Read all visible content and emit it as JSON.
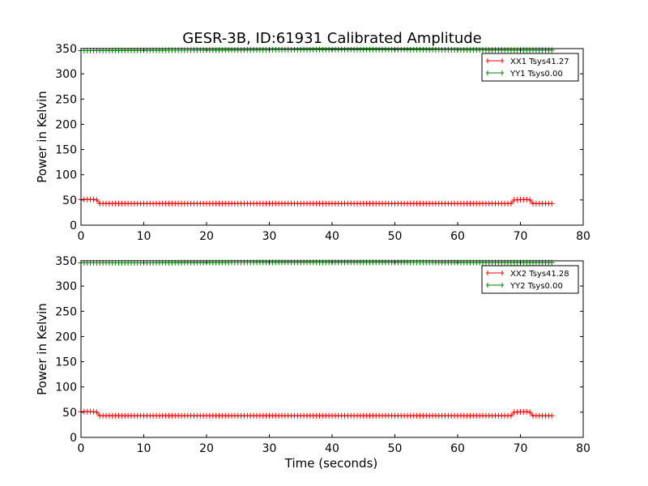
{
  "figure": {
    "title": "GESR-3B, ID:61931 Calibrated Amplitude"
  },
  "chart_data": [
    {
      "type": "line",
      "ylabel": "Power in Kelvin",
      "xlabel": "",
      "xlim": [
        0,
        80
      ],
      "ylim": [
        0,
        350
      ],
      "x_ticks": [
        0,
        10,
        20,
        30,
        40,
        50,
        60,
        70,
        80
      ],
      "y_ticks": [
        0,
        50,
        100,
        150,
        200,
        250,
        300,
        350
      ],
      "x_tick_labels": [
        "0",
        "10",
        "20",
        "30",
        "40",
        "50",
        "60",
        "70",
        "80"
      ],
      "y_tick_labels": [
        "0",
        "50",
        "100",
        "150",
        "200",
        "250",
        "300",
        "350"
      ],
      "legend_position": "top-right",
      "grid": false,
      "series": [
        {
          "name": "XX1 Tsys41.27",
          "color": "#ff0000",
          "marker": "plus",
          "points": [
            [
              0,
              51
            ],
            [
              2,
              51
            ],
            [
              2.5,
              50
            ],
            [
              3,
              43
            ],
            [
              68.5,
              43
            ],
            [
              69,
              50
            ],
            [
              71,
              51
            ],
            [
              71.5,
              50
            ],
            [
              72,
              43
            ],
            [
              75,
              43
            ]
          ]
        },
        {
          "name": "YY1 Tsys0.00",
          "color": "#008000",
          "marker": "plus",
          "points": [
            [
              0,
              346
            ],
            [
              10,
              346.5
            ],
            [
              20,
              347
            ],
            [
              30,
              347.5
            ],
            [
              40,
              348
            ],
            [
              50,
              348
            ],
            [
              60,
              347.5
            ],
            [
              70,
              347
            ],
            [
              75,
              347
            ]
          ]
        }
      ]
    },
    {
      "type": "line",
      "ylabel": "Power in Kelvin",
      "xlabel": "Time (seconds)",
      "xlim": [
        0,
        80
      ],
      "ylim": [
        0,
        350
      ],
      "x_ticks": [
        0,
        10,
        20,
        30,
        40,
        50,
        60,
        70,
        80
      ],
      "y_ticks": [
        0,
        50,
        100,
        150,
        200,
        250,
        300,
        350
      ],
      "x_tick_labels": [
        "0",
        "10",
        "20",
        "30",
        "40",
        "50",
        "60",
        "70",
        "80"
      ],
      "y_tick_labels": [
        "0",
        "50",
        "100",
        "150",
        "200",
        "250",
        "300",
        "350"
      ],
      "legend_position": "top-right",
      "grid": false,
      "series": [
        {
          "name": "XX2 Tsys41.28",
          "color": "#ff0000",
          "marker": "plus",
          "points": [
            [
              0,
              51
            ],
            [
              2,
              51
            ],
            [
              2.5,
              50
            ],
            [
              3,
              43
            ],
            [
              68.5,
              43
            ],
            [
              69,
              50
            ],
            [
              71,
              51
            ],
            [
              71.5,
              50
            ],
            [
              72,
              43
            ],
            [
              75,
              43
            ]
          ]
        },
        {
          "name": "YY2 Tsys0.00",
          "color": "#008000",
          "marker": "plus",
          "points": [
            [
              0,
              346
            ],
            [
              10,
              346
            ],
            [
              20,
              346.5
            ],
            [
              30,
              347
            ],
            [
              40,
              347
            ],
            [
              50,
              347
            ],
            [
              60,
              346.5
            ],
            [
              70,
              346.5
            ],
            [
              75,
              346.5
            ]
          ]
        }
      ]
    }
  ]
}
